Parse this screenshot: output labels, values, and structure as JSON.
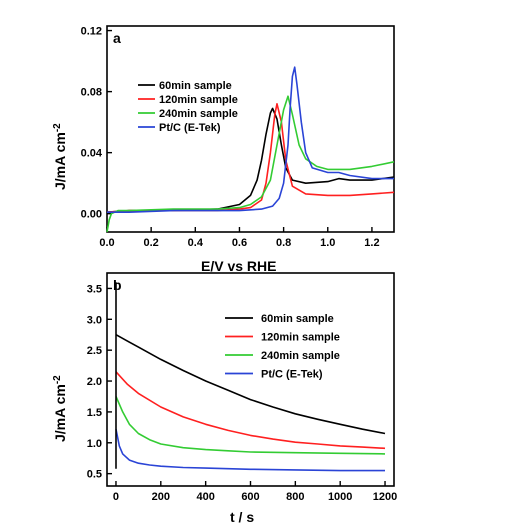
{
  "chart_data": [
    {
      "panel": "a",
      "type": "line",
      "xlabel": "E/V vs RHE",
      "ylabel": "J/mA cm",
      "ylabel_sup": "-2",
      "xlim": [
        0.0,
        1.3
      ],
      "ylim": [
        -0.012,
        0.123
      ],
      "xticks": [
        "0.0",
        "0.2",
        "0.4",
        "0.6",
        "0.8",
        "1.0",
        "1.2"
      ],
      "yticks": [
        "0.00",
        "0.04",
        "0.08",
        "0.12"
      ],
      "grid": false,
      "legend_position": "upper-left",
      "series": [
        {
          "name": "60min sample",
          "color": "#000000",
          "x": [
            0.0,
            0.1,
            0.3,
            0.5,
            0.6,
            0.65,
            0.68,
            0.7,
            0.72,
            0.74,
            0.75,
            0.77,
            0.79,
            0.81,
            0.84,
            0.9,
            1.0,
            1.05,
            1.1,
            1.2,
            1.3
          ],
          "y": [
            0.001,
            0.002,
            0.002,
            0.003,
            0.006,
            0.012,
            0.022,
            0.035,
            0.052,
            0.066,
            0.069,
            0.062,
            0.045,
            0.03,
            0.022,
            0.02,
            0.021,
            0.023,
            0.022,
            0.022,
            0.024
          ]
        },
        {
          "name": "120min sample",
          "color": "#ff2020",
          "x": [
            0.0,
            0.1,
            0.3,
            0.5,
            0.6,
            0.65,
            0.7,
            0.72,
            0.74,
            0.76,
            0.77,
            0.79,
            0.81,
            0.84,
            0.9,
            1.0,
            1.1,
            1.2,
            1.3
          ],
          "y": [
            0.001,
            0.002,
            0.002,
            0.002,
            0.003,
            0.004,
            0.009,
            0.02,
            0.04,
            0.065,
            0.072,
            0.06,
            0.035,
            0.018,
            0.013,
            0.012,
            0.012,
            0.013,
            0.014
          ]
        },
        {
          "name": "240min sample",
          "color": "#33cc33",
          "x": [
            0.0,
            0.01,
            0.02,
            0.05,
            0.1,
            0.3,
            0.5,
            0.6,
            0.65,
            0.7,
            0.74,
            0.77,
            0.8,
            0.82,
            0.84,
            0.87,
            0.9,
            0.95,
            1.0,
            1.1,
            1.2,
            1.3
          ],
          "y": [
            -0.012,
            -0.004,
            0.0,
            0.002,
            0.002,
            0.003,
            0.003,
            0.004,
            0.006,
            0.011,
            0.022,
            0.045,
            0.068,
            0.077,
            0.065,
            0.045,
            0.036,
            0.031,
            0.029,
            0.029,
            0.031,
            0.034
          ]
        },
        {
          "name": "Pt/C (E-Tek)",
          "color": "#2a44d6",
          "x": [
            0.0,
            0.1,
            0.3,
            0.5,
            0.6,
            0.7,
            0.75,
            0.78,
            0.8,
            0.82,
            0.83,
            0.84,
            0.85,
            0.86,
            0.88,
            0.9,
            0.93,
            1.0,
            1.05,
            1.1,
            1.2,
            1.3
          ],
          "y": [
            0.001,
            0.001,
            0.002,
            0.002,
            0.002,
            0.003,
            0.005,
            0.01,
            0.02,
            0.045,
            0.07,
            0.09,
            0.096,
            0.085,
            0.06,
            0.04,
            0.03,
            0.027,
            0.027,
            0.025,
            0.023,
            0.023
          ]
        }
      ]
    },
    {
      "panel": "b",
      "type": "line",
      "xlabel": "t / s",
      "ylabel": "J/mA cm",
      "ylabel_sup": "-2",
      "xlim": [
        -40,
        1240
      ],
      "ylim": [
        0.3,
        3.75
      ],
      "xticks": [
        "0",
        "200",
        "400",
        "600",
        "800",
        "1000",
        "1200"
      ],
      "yticks": [
        "0.5",
        "1.0",
        "1.5",
        "2.0",
        "2.5",
        "3.0",
        "3.5"
      ],
      "grid": false,
      "legend_position": "upper-right",
      "series": [
        {
          "name": "60min sample",
          "color": "#000000",
          "x": [
            0,
            50,
            100,
            200,
            300,
            400,
            500,
            600,
            700,
            800,
            900,
            1000,
            1100,
            1200
          ],
          "y": [
            2.75,
            2.65,
            2.55,
            2.35,
            2.17,
            2.0,
            1.85,
            1.7,
            1.58,
            1.47,
            1.38,
            1.3,
            1.22,
            1.15
          ]
        },
        {
          "name": "120min sample",
          "color": "#ff2020",
          "x": [
            0,
            50,
            100,
            200,
            300,
            400,
            500,
            600,
            700,
            800,
            900,
            1000,
            1100,
            1200
          ],
          "y": [
            2.15,
            1.95,
            1.8,
            1.58,
            1.42,
            1.3,
            1.2,
            1.12,
            1.06,
            1.01,
            0.98,
            0.95,
            0.93,
            0.91
          ]
        },
        {
          "name": "240min sample",
          "color": "#33cc33",
          "x": [
            0,
            30,
            60,
            100,
            150,
            200,
            300,
            400,
            500,
            600,
            800,
            1000,
            1200
          ],
          "y": [
            1.75,
            1.5,
            1.3,
            1.15,
            1.05,
            0.98,
            0.92,
            0.89,
            0.87,
            0.85,
            0.84,
            0.83,
            0.82
          ]
        },
        {
          "name": "Pt/C (E-Tek)",
          "color": "#2a44d6",
          "x": [
            0,
            15,
            30,
            60,
            100,
            150,
            200,
            300,
            400,
            600,
            800,
            1000,
            1200
          ],
          "y": [
            1.22,
            0.95,
            0.82,
            0.72,
            0.67,
            0.64,
            0.62,
            0.6,
            0.59,
            0.57,
            0.56,
            0.55,
            0.55
          ]
        },
        {
          "name": "",
          "color": "#000000",
          "x": [
            0,
            0
          ],
          "y": [
            3.6,
            0.58
          ]
        }
      ]
    }
  ]
}
